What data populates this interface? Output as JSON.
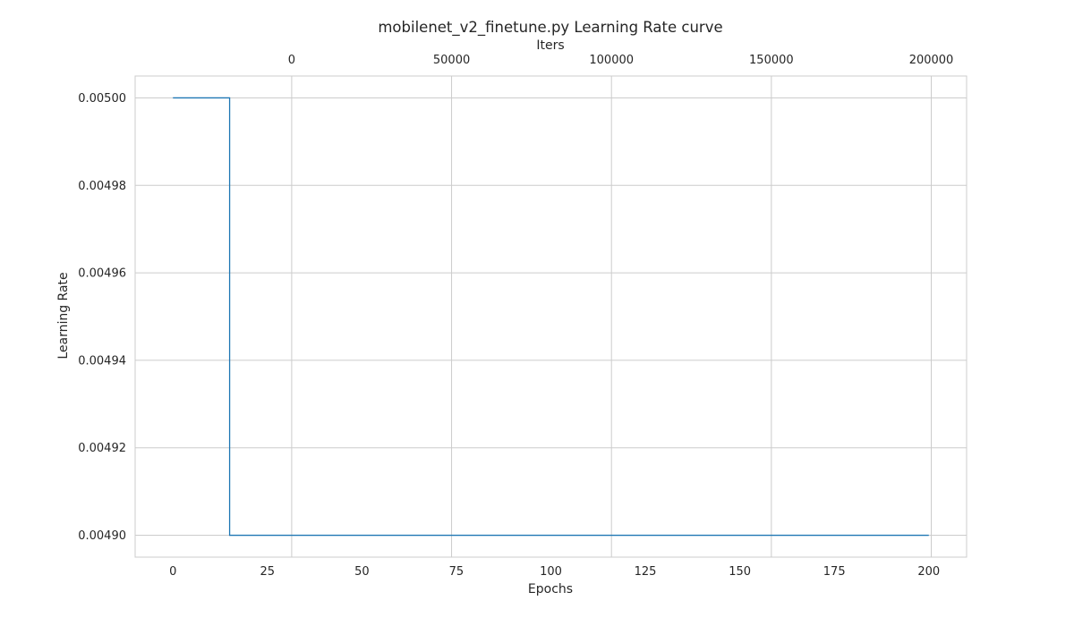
{
  "chart_data": {
    "type": "line",
    "title": "mobilenet_v2_finetune.py Learning Rate curve",
    "xlabel": "Epochs",
    "ylabel": "Learning Rate",
    "x2label": "Iters",
    "xlim": [
      -10,
      210
    ],
    "ylim": [
      0.004895,
      0.005005
    ],
    "x2lim": [
      -48950,
      211050
    ],
    "xticks": [
      0,
      25,
      50,
      75,
      100,
      125,
      150,
      175,
      200
    ],
    "yticks": [
      0.0049,
      0.00492,
      0.00494,
      0.00496,
      0.00498,
      0.005
    ],
    "ytick_labels": [
      "0.00490",
      "0.00492",
      "0.00494",
      "0.00496",
      "0.00498",
      "0.00500"
    ],
    "x2ticks": [
      0,
      50000,
      100000,
      150000,
      200000
    ],
    "grid": true,
    "series": [
      {
        "color": "#1f77b4",
        "x": [
          0,
          15,
          15,
          200
        ],
        "y": [
          0.005,
          0.005,
          0.0049,
          0.0049
        ]
      }
    ]
  }
}
